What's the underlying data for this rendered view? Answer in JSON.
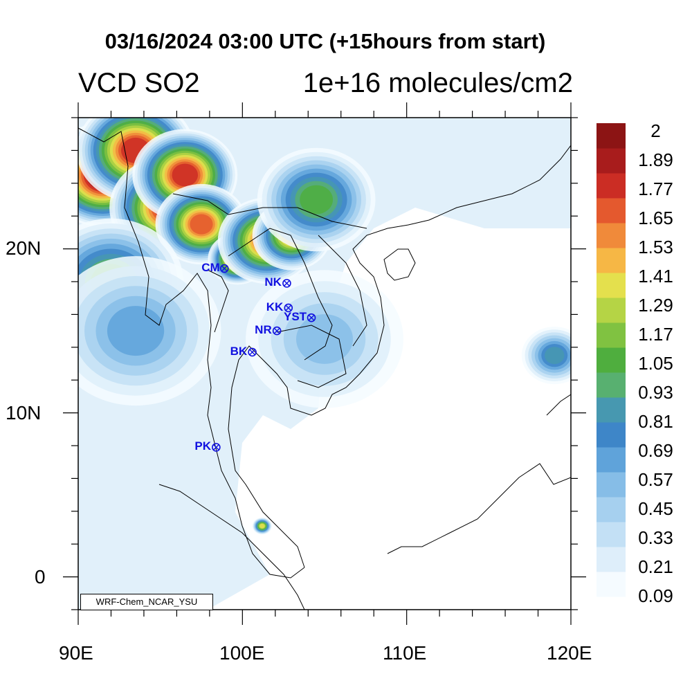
{
  "title": "03/16/2024 03:00 UTC (+15hours from start)",
  "variable": "VCD SO2",
  "units": "1e+16 molecules/cm2",
  "credit": "WRF-Chem_NCAR_YSU",
  "axes": {
    "x_ticks": [
      "90E",
      "100E",
      "110E",
      "120E"
    ],
    "y_ticks": [
      "20N",
      "10N",
      "0"
    ],
    "lon_range": [
      90,
      120
    ],
    "lat_range": [
      -2,
      28
    ]
  },
  "colorbar": {
    "labels": [
      "2",
      "1.89",
      "1.77",
      "1.65",
      "1.53",
      "1.41",
      "1.29",
      "1.17",
      "1.05",
      "0.93",
      "0.81",
      "0.69",
      "0.57",
      "0.45",
      "0.33",
      "0.21",
      "0.09"
    ],
    "colors": [
      "#f5fbff",
      "#deeefa",
      "#c3e0f5",
      "#a6d0ef",
      "#86bde7",
      "#5fa3da",
      "#3e86c8",
      "#4798b0",
      "#58b070",
      "#4fae3e",
      "#80c241",
      "#b5d445",
      "#e4e04d",
      "#f6b745",
      "#f08a3a",
      "#e4592e",
      "#cb2d24",
      "#a81c1c",
      "#8c1414"
    ]
  },
  "stations": [
    {
      "label": "CM",
      "lon": 98.9,
      "lat": 18.8
    },
    {
      "label": "NK",
      "lon": 102.7,
      "lat": 17.9
    },
    {
      "label": "KK",
      "lon": 102.8,
      "lat": 16.4
    },
    {
      "label": "YST",
      "lon": 104.2,
      "lat": 15.8
    },
    {
      "label": "NR",
      "lon": 102.1,
      "lat": 15.0
    },
    {
      "label": "BK",
      "lon": 100.6,
      "lat": 13.7
    },
    {
      "label": "PK",
      "lon": 98.4,
      "lat": 7.9
    }
  ],
  "so2_field": [
    {
      "lon": 91.5,
      "lat": 24.5,
      "level": 18,
      "r": 1.8
    },
    {
      "lon": 93.5,
      "lat": 26.0,
      "level": 16,
      "r": 1.8
    },
    {
      "lon": 95.5,
      "lat": 22.5,
      "level": 16,
      "r": 1.8
    },
    {
      "lon": 96.5,
      "lat": 24.5,
      "level": 16,
      "r": 1.6
    },
    {
      "lon": 97.5,
      "lat": 21.5,
      "level": 15,
      "r": 1.4
    },
    {
      "lon": 99.7,
      "lat": 19.4,
      "level": 16,
      "r": 0.9
    },
    {
      "lon": 101.5,
      "lat": 20.5,
      "level": 15,
      "r": 1.5
    },
    {
      "lon": 103.0,
      "lat": 20.8,
      "level": 13,
      "r": 1.2
    },
    {
      "lon": 104.5,
      "lat": 23.0,
      "level": 9,
      "r": 1.8
    },
    {
      "lon": 92.0,
      "lat": 18.0,
      "level": 9,
      "r": 2.2
    },
    {
      "lon": 93.5,
      "lat": 15.0,
      "level": 5,
      "r": 2.6
    },
    {
      "lon": 105.0,
      "lat": 14.5,
      "level": 4,
      "r": 2.4
    },
    {
      "lon": 119.0,
      "lat": 13.5,
      "level": 7,
      "r": 1.0
    },
    {
      "lon": 101.2,
      "lat": 3.1,
      "level": 12,
      "r": 0.3
    }
  ]
}
